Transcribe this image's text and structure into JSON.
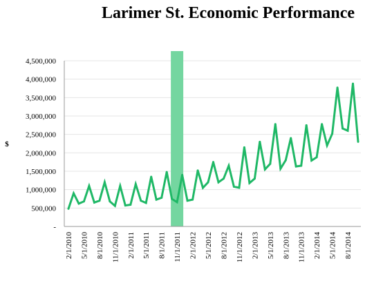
{
  "chart_data": {
    "type": "line",
    "title": "Larimer St. Economic Performance",
    "ylabel": "$",
    "ylim": [
      0,
      4500000
    ],
    "y_tick_labels": [
      "-",
      "500,000",
      "1,000,000",
      "1,500,000",
      "2,000,000",
      "2,500,000",
      "3,000,000",
      "3,500,000",
      "4,000,000",
      "4,500,000"
    ],
    "x_tick_labels": [
      "2/1/2010",
      "5/1/2010",
      "8/1/2010",
      "11/1/2010",
      "2/1/2011",
      "5/1/2011",
      "8/1/2011",
      "11/1/2011",
      "2/1/2012",
      "5/1/2012",
      "8/1/2012",
      "11/1/2012",
      "2/1/2013",
      "5/1/2013",
      "8/1/2013",
      "11/1/2013",
      "2/1/2014",
      "5/1/2014",
      "8/1/2014"
    ],
    "series_color": "#1fb866",
    "highlight_color": "#74d6a0",
    "highlight_range": [
      "11/1/2011",
      "11/1/2011"
    ],
    "grid": "horizontal",
    "series": [
      {
        "x": [
          "2/1/2010",
          "3/1/2010",
          "4/1/2010",
          "5/1/2010",
          "6/1/2010",
          "7/1/2010",
          "8/1/2010",
          "9/1/2010",
          "10/1/2010",
          "11/1/2010",
          "12/1/2010",
          "1/1/2011",
          "2/1/2011",
          "3/1/2011",
          "4/1/2011",
          "5/1/2011",
          "6/1/2011",
          "7/1/2011",
          "8/1/2011",
          "9/1/2011",
          "10/1/2011",
          "11/1/2011",
          "12/1/2011",
          "1/1/2012",
          "2/1/2012",
          "3/1/2012",
          "4/1/2012",
          "5/1/2012",
          "6/1/2012",
          "7/1/2012",
          "8/1/2012",
          "9/1/2012",
          "10/1/2012",
          "11/1/2012",
          "12/1/2012",
          "1/1/2013",
          "2/1/2013",
          "3/1/2013",
          "4/1/2013",
          "5/1/2013",
          "6/1/2013",
          "7/1/2013",
          "8/1/2013",
          "9/1/2013",
          "10/1/2013",
          "11/1/2013",
          "12/1/2013",
          "1/1/2014",
          "2/1/2014",
          "3/1/2014",
          "4/1/2014",
          "5/1/2014",
          "6/1/2014",
          "7/1/2014",
          "8/1/2014",
          "9/1/2014",
          "10/1/2014"
        ],
        "y": [
          480000,
          900000,
          620000,
          680000,
          1100000,
          650000,
          700000,
          1200000,
          680000,
          560000,
          1100000,
          570000,
          590000,
          1150000,
          700000,
          640000,
          1350000,
          730000,
          780000,
          1480000,
          750000,
          660000,
          1400000,
          700000,
          730000,
          1520000,
          1050000,
          1200000,
          1750000,
          1200000,
          1300000,
          1650000,
          1080000,
          1050000,
          2150000,
          1180000,
          1300000,
          2300000,
          1550000,
          1700000,
          2780000,
          1570000,
          1800000,
          2400000,
          1630000,
          1650000,
          2750000,
          1790000,
          1880000,
          2780000,
          2200000,
          2520000,
          3770000,
          2660000,
          2600000,
          3880000,
          2300000
        ]
      }
    ]
  }
}
